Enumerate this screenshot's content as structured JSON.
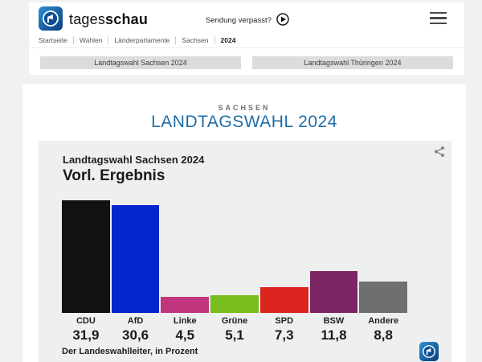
{
  "header": {
    "brand": {
      "name_light": "tages",
      "name_bold": "schau"
    },
    "sendung_verpasst_label": "Sendung verpasst?",
    "breadcrumb": {
      "items": [
        "Startseite",
        "Wahlen",
        "Länderparlamente",
        "Sachsen",
        "2024"
      ]
    },
    "tabs": [
      {
        "label": "Landtagswahl Sachsen 2024"
      },
      {
        "label": "Landtagswahl Thüringen 2024"
      }
    ]
  },
  "main": {
    "kicker": "SACHSEN",
    "title": "LANDTAGSWAHL 2024",
    "title_color": "#1d6da8"
  },
  "chart_data": {
    "type": "bar",
    "title": "Landtagswahl Sachsen 2024",
    "subtitle": "Vorl. Ergebnis",
    "categories": [
      "CDU",
      "AfD",
      "Linke",
      "Grüne",
      "SPD",
      "BSW",
      "Andere"
    ],
    "values": [
      31.9,
      30.6,
      4.5,
      5.1,
      7.3,
      11.8,
      8.8
    ],
    "value_labels": [
      "31,9",
      "30,6",
      "4,5",
      "5,1",
      "7,3",
      "11,8",
      "8,8"
    ],
    "colors": [
      "#111111",
      "#0326cd",
      "#c0357e",
      "#76bd1d",
      "#da241d",
      "#7d2562",
      "#6f6f6f"
    ],
    "source": "Der Landeswahlleiter, in Prozent",
    "ylabel": "Prozent",
    "ylim": [
      0,
      32
    ],
    "grid": false,
    "legend": "none"
  }
}
